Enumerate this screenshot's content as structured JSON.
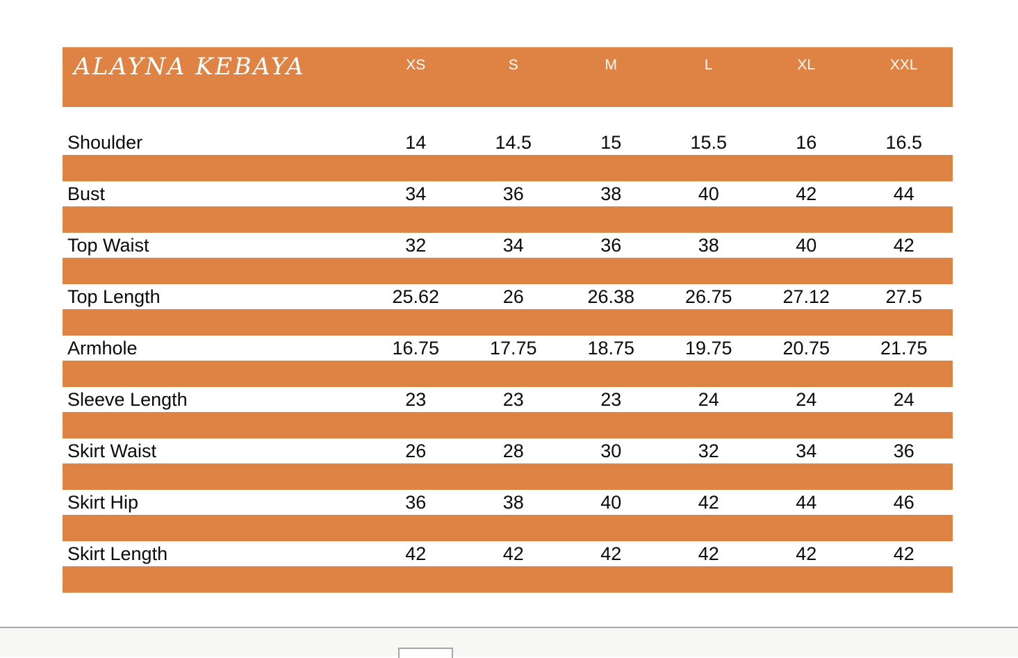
{
  "document": {
    "title": "ALAYNA KEBAYA",
    "columns": [
      "XS",
      "S",
      "M",
      "L",
      "XL",
      "XXL"
    ],
    "rows": [
      {
        "label": "Shoulder",
        "values": [
          "14",
          "14.5",
          "15",
          "15.5",
          "16",
          "16.5"
        ]
      },
      {
        "label": "Bust",
        "values": [
          "34",
          "36",
          "38",
          "40",
          "42",
          "44"
        ]
      },
      {
        "label": "Top Waist",
        "values": [
          "32",
          "34",
          "36",
          "38",
          "40",
          "42"
        ]
      },
      {
        "label": "Top Length",
        "values": [
          "25.62",
          "26",
          "26.38",
          "26.75",
          "27.12",
          "27.5"
        ]
      },
      {
        "label": "Armhole",
        "values": [
          "16.75",
          "17.75",
          "18.75",
          "19.75",
          "20.75",
          "21.75"
        ]
      },
      {
        "label": "Sleeve Length",
        "values": [
          "23",
          "23",
          "23",
          "24",
          "24",
          "24"
        ]
      },
      {
        "label": "Skirt Waist",
        "values": [
          "26",
          "28",
          "30",
          "32",
          "34",
          "36"
        ]
      },
      {
        "label": "Skirt Hip",
        "values": [
          "36",
          "38",
          "40",
          "42",
          "44",
          "46"
        ]
      },
      {
        "label": "Skirt Length",
        "values": [
          "42",
          "42",
          "42",
          "42",
          "42",
          "42"
        ]
      }
    ]
  },
  "chart_data": {
    "type": "table",
    "title": "ALAYNA KEBAYA",
    "categories": [
      "XS",
      "S",
      "M",
      "L",
      "XL",
      "XXL"
    ],
    "series": [
      {
        "name": "Shoulder",
        "values": [
          14,
          14.5,
          15,
          15.5,
          16,
          16.5
        ]
      },
      {
        "name": "Bust",
        "values": [
          34,
          36,
          38,
          40,
          42,
          44
        ]
      },
      {
        "name": "Top Waist",
        "values": [
          32,
          34,
          36,
          38,
          40,
          42
        ]
      },
      {
        "name": "Top Length",
        "values": [
          25.62,
          26,
          26.38,
          26.75,
          27.12,
          27.5
        ]
      },
      {
        "name": "Armhole",
        "values": [
          16.75,
          17.75,
          18.75,
          19.75,
          20.75,
          21.75
        ]
      },
      {
        "name": "Sleeve Length",
        "values": [
          23,
          23,
          23,
          24,
          24,
          24
        ]
      },
      {
        "name": "Skirt Waist",
        "values": [
          26,
          28,
          30,
          32,
          34,
          36
        ]
      },
      {
        "name": "Skirt Hip",
        "values": [
          36,
          38,
          40,
          42,
          44,
          46
        ]
      },
      {
        "name": "Skirt Length",
        "values": [
          42,
          42,
          42,
          42,
          42,
          42
        ]
      }
    ]
  },
  "colors": {
    "accent": "#DE8344",
    "header_text": "#FFFFFF",
    "body_text": "#0A0A0A",
    "page_edge_line": "#A9A9A9",
    "outside_page_bg": "#F7F7F6",
    "next_page_border": "#A6A6A6"
  }
}
